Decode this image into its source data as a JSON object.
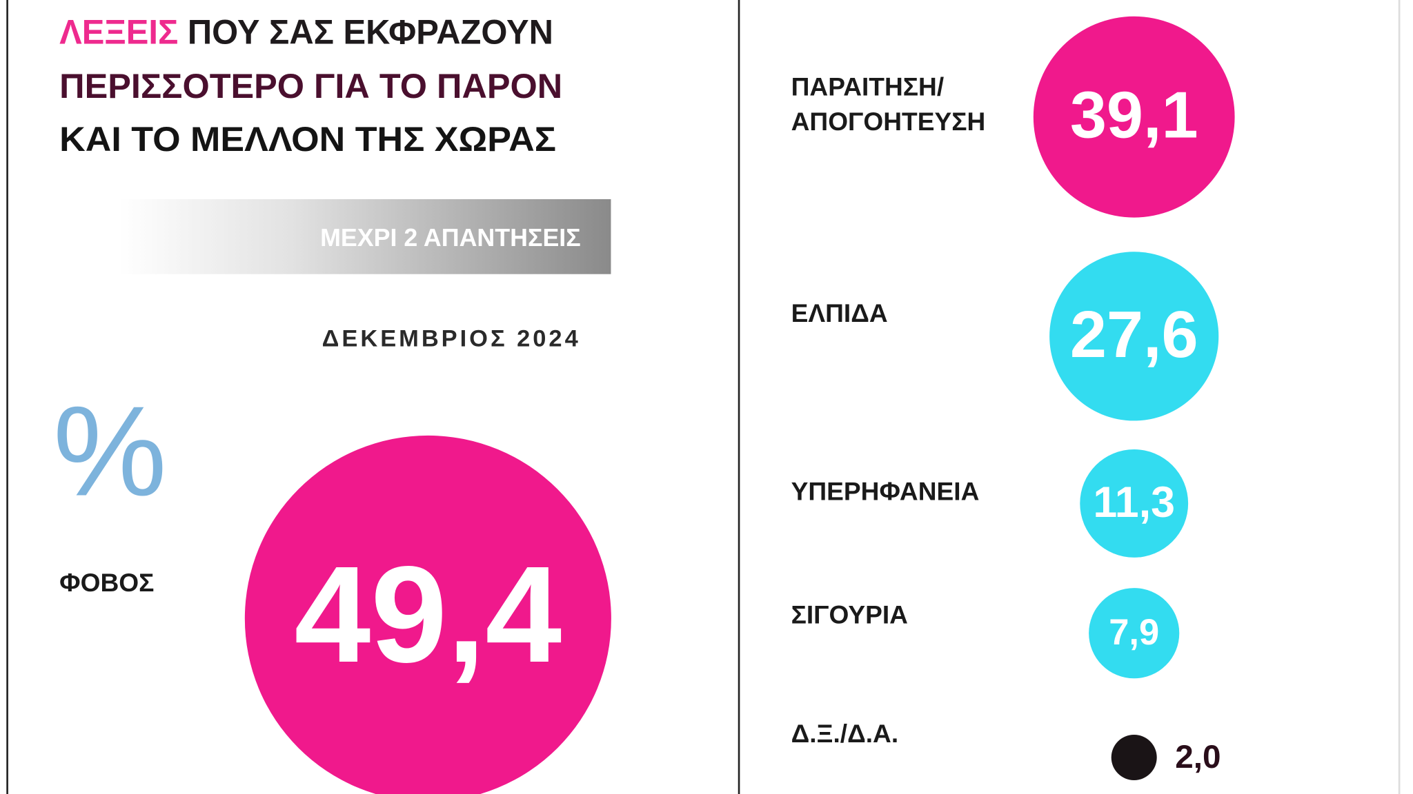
{
  "chart_data": {
    "type": "bubble",
    "title": [
      "ΛΕΞΕΙΣ",
      " ΠΟΥ ΣΑΣ ΕΚΦΡΑΖΟΥΝ",
      "ΠΕΡΙΣΣΟΤΕΡΟ ΓΙΑ ΤΟ ΠΑΡΟΝ",
      "ΚΑΙ ΤΟ ΜΕΛΛΟΝ ΤΗΣ ΧΩΡΑΣ"
    ],
    "subtitle": "ΜΕΧΡΙ 2 ΑΠΑΝΤΗΣΕΙΣ",
    "date": "ΔΕΚΕΜΒΡΙΟΣ 2024",
    "unit": "%",
    "categories": [
      "ΦΟΒΟΣ",
      "ΠΑΡΑΙΤΗΣΗ/ ΑΠΟΓΟΗΤΕΥΣΗ",
      "ΕΛΠΙΔΑ",
      "ΥΠΕΡΗΦΑΝΕΙΑ",
      "ΣΙΓΟΥΡΙΑ",
      "Δ.Ξ./Δ.Α."
    ],
    "values": [
      49.4,
      39.1,
      27.6,
      11.3,
      7.9,
      2.0
    ],
    "value_labels": [
      "49,4",
      "39,1",
      "27,6",
      "11,3",
      "7,9",
      "2,0"
    ],
    "colors": [
      "#f0198c",
      "#f0198c",
      "#33dcf0",
      "#33dcf0",
      "#33dcf0",
      "#1a1416"
    ]
  }
}
